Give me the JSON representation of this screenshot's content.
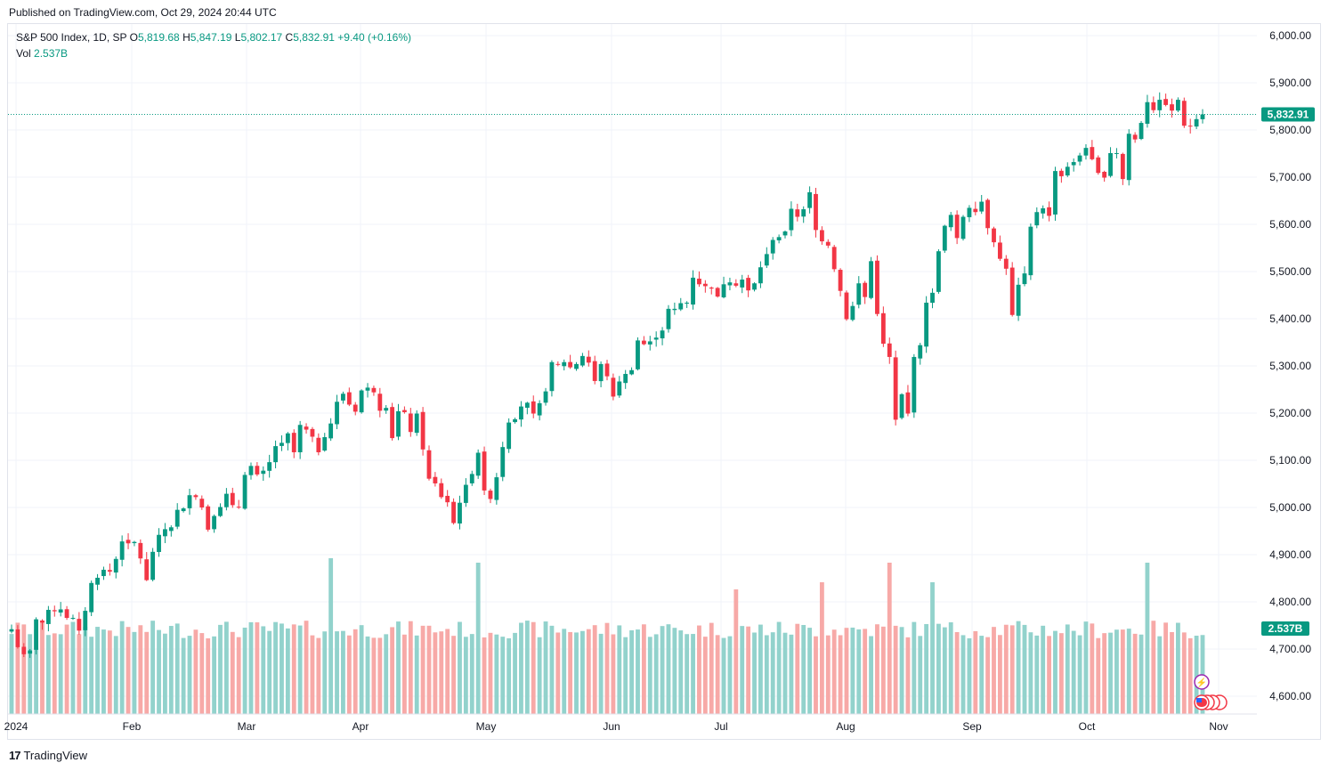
{
  "publish_line": "Published on TradingView.com, Oct 29, 2024 20:44 UTC",
  "brand": {
    "logo": "17",
    "name": "TradingView"
  },
  "legend": {
    "symbol": "S&P 500 Index, 1D, SP",
    "open_label": "O",
    "open": "5,819.68",
    "high_label": "H",
    "high": "5,847.19",
    "low_label": "L",
    "low": "5,802.17",
    "close_label": "C",
    "close": "5,832.91",
    "change": "+9.40 (+0.16%)",
    "vol_label": "Vol",
    "vol": "2.537B"
  },
  "colors": {
    "up": "#089981",
    "down": "#f23645",
    "up_vol": "#92d2cc",
    "down_vol": "#f7a9a7",
    "grid": "#f0f3fa",
    "text": "#131722"
  },
  "chart_data": {
    "type": "candlestick",
    "symbol": "S&P 500 Index",
    "interval": "1D",
    "ylim": [
      4550,
      6030
    ],
    "y_ticks": [
      "6,000.00",
      "5,900.00",
      "5,800.00",
      "5,700.00",
      "5,600.00",
      "5,500.00",
      "5,400.00",
      "5,300.00",
      "5,200.00",
      "5,100.00",
      "5,000.00",
      "4,900.00",
      "4,800.00",
      "4,700.00",
      "4,600.00"
    ],
    "x_ticks": [
      "2024",
      "Feb",
      "Mar",
      "Apr",
      "May",
      "Jun",
      "Jul",
      "Aug",
      "Sep",
      "Oct",
      "Nov"
    ],
    "last_price": "5,832.91",
    "last_volume": "2.537B",
    "vol_max_billion": 5.2,
    "closes": [
      4742,
      4704,
      4689,
      4697,
      4763,
      4756,
      4783,
      4780,
      4784,
      4766,
      4766,
      4739,
      4781,
      4840,
      4851,
      4868,
      4864,
      4891,
      4928,
      4924,
      4927,
      4892,
      4846,
      4906,
      4942,
      4954,
      4958,
      4995,
      4998,
      5026,
      5022,
      5000,
      4953,
      4982,
      5001,
      5029,
      5005,
      5000,
      5069,
      5088,
      5070,
      5078,
      5096,
      5130,
      5137,
      5157,
      5117,
      5175,
      5165,
      5150,
      5117,
      5149,
      5178,
      5224,
      5241,
      5218,
      5203,
      5248,
      5254,
      5244,
      5205,
      5211,
      5147,
      5204,
      5202,
      5160,
      5199,
      5123,
      5061,
      5051,
      5022,
      5011,
      4967,
      5010,
      5048,
      5071,
      5116,
      5036,
      5018,
      5064,
      5128,
      5180,
      5187,
      5214,
      5222,
      5199,
      5221,
      5246,
      5308,
      5303,
      5308,
      5297,
      5304,
      5321,
      5307,
      5268,
      5304,
      5278,
      5235,
      5267,
      5283,
      5291,
      5354,
      5346,
      5352,
      5360,
      5375,
      5421,
      5421,
      5433,
      5434,
      5487,
      5473,
      5469,
      5464,
      5447,
      5473,
      5477,
      5470,
      5483,
      5460,
      5475,
      5509,
      5537,
      5567,
      5573,
      5585,
      5633,
      5616,
      5632,
      5668,
      5588,
      5564,
      5555,
      5505,
      5459,
      5399,
      5427,
      5475,
      5446,
      5522,
      5410,
      5347,
      5319,
      5186,
      5240,
      5199,
      5319,
      5344,
      5434,
      5455,
      5543,
      5597,
      5620,
      5571,
      5616,
      5635,
      5626,
      5648,
      5592,
      5562,
      5527,
      5506,
      5408,
      5472,
      5496,
      5595,
      5626,
      5634,
      5618,
      5713,
      5702,
      5722,
      5732,
      5746,
      5762,
      5738,
      5709,
      5699,
      5751,
      5751,
      5696,
      5792,
      5780,
      5815,
      5859,
      5842,
      5864,
      5853,
      5841,
      5864,
      5809,
      5808,
      5823,
      5833
    ],
    "dates_note": ""
  }
}
